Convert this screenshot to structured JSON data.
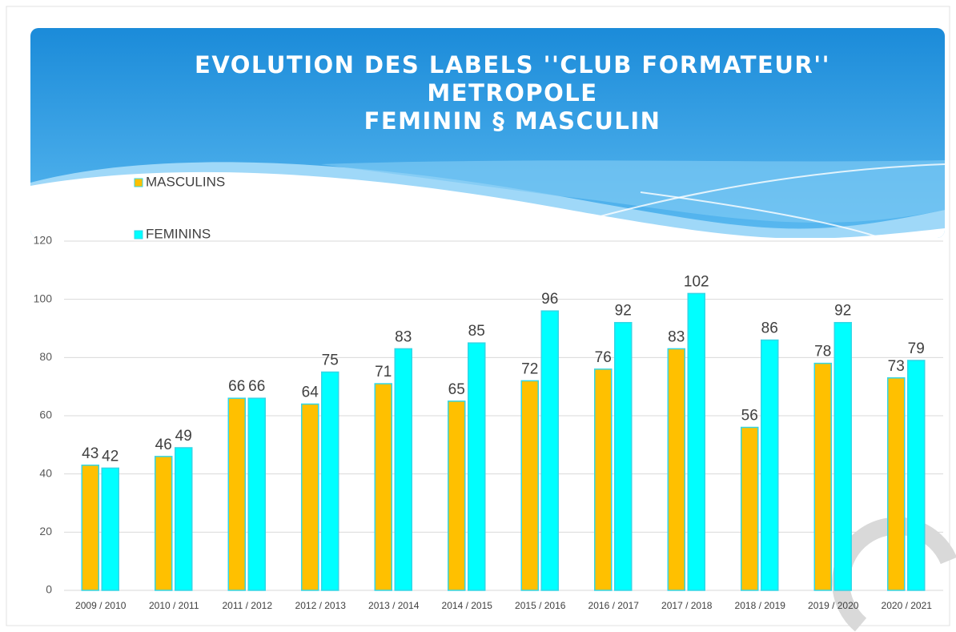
{
  "chart_data": {
    "type": "bar",
    "title": [
      "EVOLUTION DES LABELS ''CLUB FORMATEUR''",
      "METROPOLE",
      "FEMININ § MASCULIN"
    ],
    "categories": [
      "2009 / 2010",
      "2010 / 2011",
      "2011 / 2012",
      "2012 / 2013",
      "2013 / 2014",
      "2014 / 2015",
      "2015 / 2016",
      "2016 / 2017",
      "2017 / 2018",
      "2018 / 2019",
      "2019 / 2020",
      "2020 / 2021"
    ],
    "series": [
      {
        "name": "MASCULINS",
        "color": "#ffc000",
        "values": [
          43,
          46,
          66,
          64,
          71,
          65,
          72,
          76,
          83,
          56,
          78,
          73
        ]
      },
      {
        "name": "FEMININS",
        "color": "#00ffff",
        "values": [
          42,
          49,
          66,
          75,
          83,
          85,
          96,
          92,
          102,
          86,
          92,
          79
        ]
      }
    ],
    "ylim": [
      0,
      120
    ],
    "yticks": [
      0,
      20,
      40,
      60,
      80,
      100,
      120
    ],
    "grid": true
  }
}
